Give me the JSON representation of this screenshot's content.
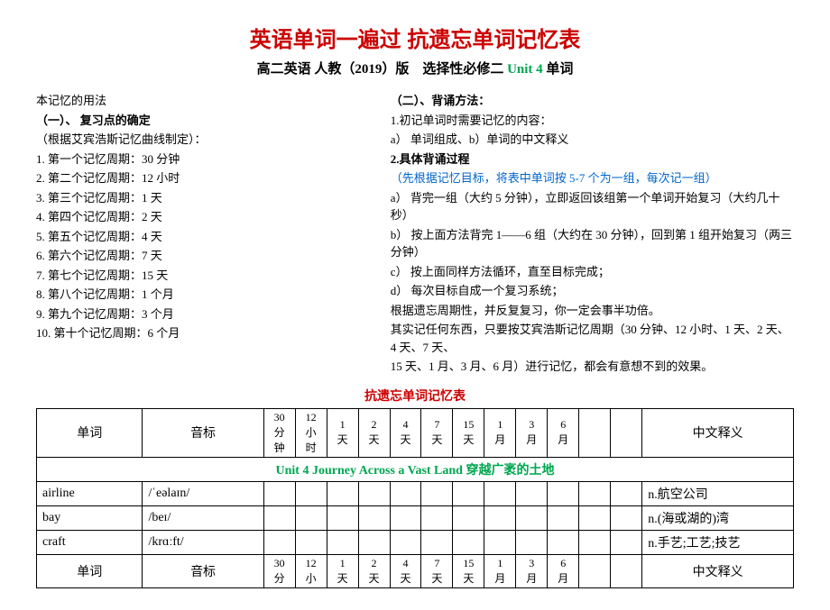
{
  "title": "英语单词一遍过 抗遗忘单词记忆表",
  "subtitle_prefix": "高二英语 人教（2019）版　选择性必修二 ",
  "subtitle_unit": "Unit 4",
  "subtitle_suffix": " 单词",
  "intro": "本记忆的用法",
  "left": {
    "heading": "（一）、 复习点的确定",
    "note": "（根据艾宾浩斯记忆曲线制定）：",
    "items": [
      "1.  第一个记忆周期：30 分钟",
      "2.  第二个记忆周期：12 小时",
      "3.  第三个记忆周期：1 天",
      "4.  第四个记忆周期：2 天",
      "5.  第五个记忆周期：4 天",
      "6.  第六个记忆周期：7 天",
      "7.  第七个记忆周期：15 天",
      "8.  第八个记忆周期：1 个月",
      "9.  第九个记忆周期：3 个月",
      "10. 第十个记忆周期：6 个月"
    ]
  },
  "right": {
    "heading": "（二）、背诵方法：",
    "l1": "1.初记单词时需要记忆的内容：",
    "l2": "a） 单词组成、b）单词的中文释义",
    "l3": "2.具体背诵过程",
    "blue": "（先根据记忆目标，将表中单词按 5-7 个为一组，每次记一组）",
    "steps": [
      "a） 背完一组（大约 5 分钟），立即返回该组第一个单词开始复习（大约几十秒）",
      "b） 按上面方法背完 1——6 组（大约在 30 分钟），回到第 1 组开始复习（两三分钟）",
      "c） 按上面同样方法循环，直至目标完成；",
      "d） 每次目标自成一个复习系统；"
    ],
    "tail1": "根据遗忘周期性，并反复复习，你一定会事半功倍。",
    "tail2": "其实记任何东西，只要按艾宾浩斯记忆周期（30 分钟、12 小时、1 天、2 天、4 天、7 天、",
    "tail3": "15 天、1 月、3 月、6 月）进行记忆，都会有意想不到的效果。"
  },
  "table_title": "抗遗忘单词记忆表",
  "headers": {
    "word": "单词",
    "phon": "音标",
    "mean": "中文释义",
    "times": [
      "30\n分\n钟",
      "12\n小\n时",
      "1\n天",
      "2\n天",
      "4\n天",
      "7\n天",
      "15\n天",
      "1\n月",
      "3\n月",
      "6\n月"
    ]
  },
  "unit_row": "Unit 4 Journey Across a Vast Land 穿越广袤的土地",
  "rows": [
    {
      "w": "airline",
      "p": "/ˈeəlaɪn/",
      "m": "n.航空公司"
    },
    {
      "w": "bay",
      "p": "/beɪ/",
      "m": "n.(海或湖的)湾"
    },
    {
      "w": "craft",
      "p": "/krɑːft/",
      "m": "n.手艺;工艺;技艺"
    }
  ],
  "footer_times": [
    "30\n分",
    "12\n小",
    "1\n天",
    "2\n天",
    "4\n天",
    "7\n天",
    "15\n天",
    "1\n月",
    "3\n月",
    "6\n月"
  ]
}
